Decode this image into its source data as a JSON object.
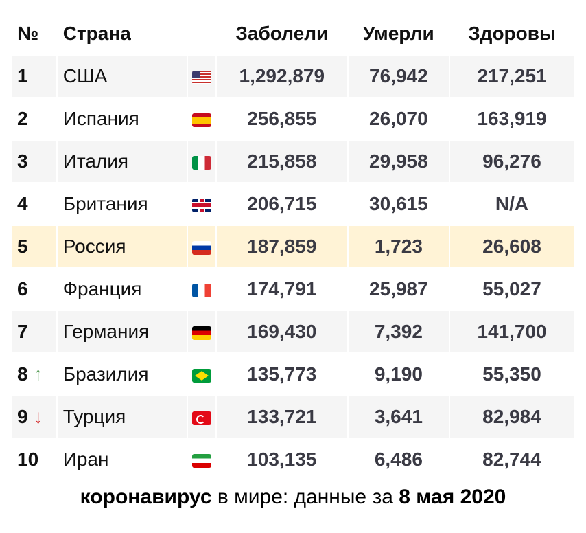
{
  "headers": {
    "rank": "№",
    "country": "Страна",
    "cases": "Заболели",
    "deaths": "Умерли",
    "recovered": "Здоровы"
  },
  "rows": [
    {
      "rank": "1",
      "arrow": "",
      "country": "США",
      "flag": "us",
      "cases": "1,292,879",
      "deaths": "76,942",
      "recovered": "217,251"
    },
    {
      "rank": "2",
      "arrow": "",
      "country": "Испания",
      "flag": "es",
      "cases": "256,855",
      "deaths": "26,070",
      "recovered": "163,919"
    },
    {
      "rank": "3",
      "arrow": "",
      "country": "Италия",
      "flag": "it",
      "cases": "215,858",
      "deaths": "29,958",
      "recovered": "96,276"
    },
    {
      "rank": "4",
      "arrow": "",
      "country": "Британия",
      "flag": "gb",
      "cases": "206,715",
      "deaths": "30,615",
      "recovered": "N/A"
    },
    {
      "rank": "5",
      "arrow": "",
      "country": "Россия",
      "flag": "ru",
      "cases": "187,859",
      "deaths": "1,723",
      "recovered": "26,608",
      "highlight": true
    },
    {
      "rank": "6",
      "arrow": "",
      "country": "Франция",
      "flag": "fr",
      "cases": "174,791",
      "deaths": "25,987",
      "recovered": "55,027"
    },
    {
      "rank": "7",
      "arrow": "",
      "country": "Германия",
      "flag": "de",
      "cases": "169,430",
      "deaths": "7,392",
      "recovered": "141,700"
    },
    {
      "rank": "8",
      "arrow": "↑",
      "country": "Бразилия",
      "flag": "br",
      "cases": "135,773",
      "deaths": "9,190",
      "recovered": "55,350"
    },
    {
      "rank": "9",
      "arrow": "↓",
      "country": "Турция",
      "flag": "tr",
      "cases": "133,721",
      "deaths": "3,641",
      "recovered": "82,984"
    },
    {
      "rank": "10",
      "arrow": "",
      "country": "Иран",
      "flag": "ir",
      "cases": "103,135",
      "deaths": "6,486",
      "recovered": "82,744"
    }
  ],
  "colors": {
    "up": "#5a9e5a",
    "down": "#d42a2a",
    "highlight": "#fff3d6",
    "stripe": "#f5f5f5"
  },
  "caption": {
    "bold1": "коронавирус",
    "middle": " в мире: данные за ",
    "bold2": "8 мая 2020"
  }
}
